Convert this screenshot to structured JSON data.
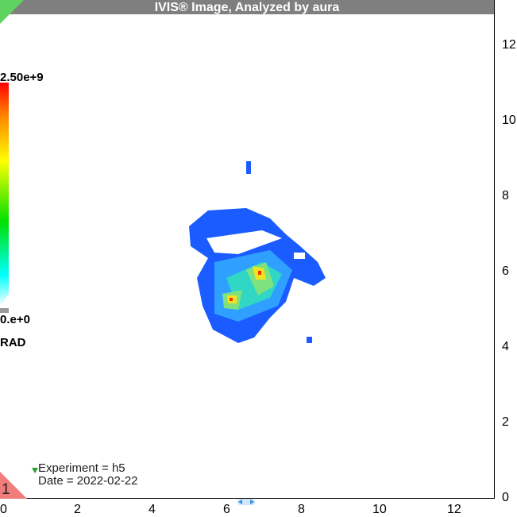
{
  "title": "IVIS® Image, Analyzed by aura",
  "colorbar": {
    "max_label": "2.50e+9",
    "min_label": "0.e+0",
    "unit": "RAD"
  },
  "y_axis": {
    "ticks": [
      "12",
      "10",
      "8",
      "6",
      "4",
      "2",
      "0"
    ]
  },
  "x_axis": {
    "ticks": [
      "0",
      "2",
      "4",
      "6",
      "8",
      "10",
      "12"
    ]
  },
  "overlay": {
    "experiment": "Experiment =  h5",
    "date": "Date = 2022-02-22"
  },
  "corner_label": "1",
  "colors": {
    "title_bar": "#7f7f7f",
    "hot": "#ff0000",
    "signal_low": "#0a3cff"
  }
}
